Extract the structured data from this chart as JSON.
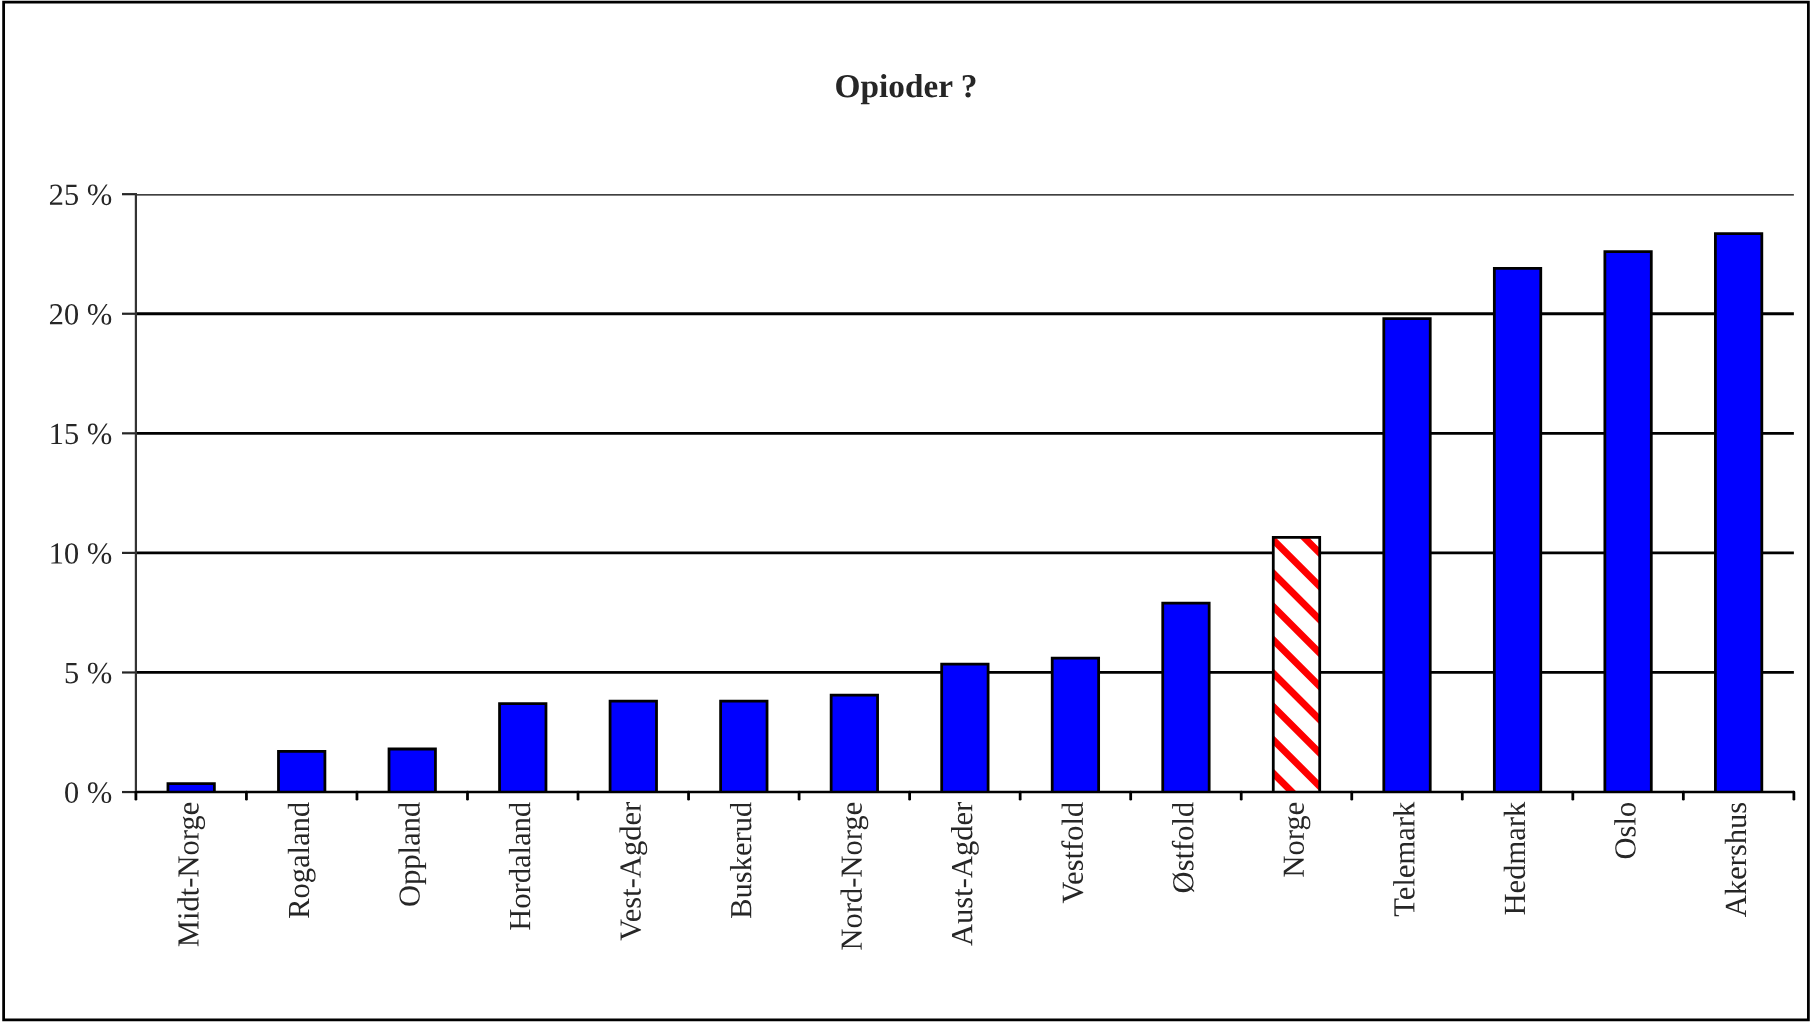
{
  "chart_data": {
    "type": "bar",
    "title": "Opioder ?",
    "categories": [
      "Midt-Norge",
      "Rogaland",
      "Oppland",
      "Hordaland",
      "Vest-Agder",
      "Buskerud",
      "Nord-Norge",
      "Aust-Agder",
      "Vestfold",
      "Østfold",
      "Norge",
      "Telemark",
      "Hedmark",
      "Oslo",
      "Akershus"
    ],
    "values": [
      0.35,
      1.7,
      1.8,
      3.7,
      3.8,
      3.8,
      4.05,
      5.35,
      5.6,
      7.9,
      10.65,
      19.8,
      21.9,
      22.6,
      23.35
    ],
    "colors": [
      "#0000ff",
      "#0000ff",
      "#0000ff",
      "#0000ff",
      "#0000ff",
      "#0000ff",
      "#0000ff",
      "#0000ff",
      "#0000ff",
      "#0000ff",
      "#ff0000",
      "#0000ff",
      "#0000ff",
      "#0000ff",
      "#0000ff"
    ],
    "ylim": [
      0,
      25
    ],
    "yticks": [
      {
        "value": 0,
        "label": "0 %"
      },
      {
        "value": 5,
        "label": "5 %"
      },
      {
        "value": 10,
        "label": "10 %"
      },
      {
        "value": 15,
        "label": "15 %"
      },
      {
        "value": 20,
        "label": "20 %"
      },
      {
        "value": 25,
        "label": "25 %"
      }
    ],
    "grid": "y",
    "legend": false
  }
}
